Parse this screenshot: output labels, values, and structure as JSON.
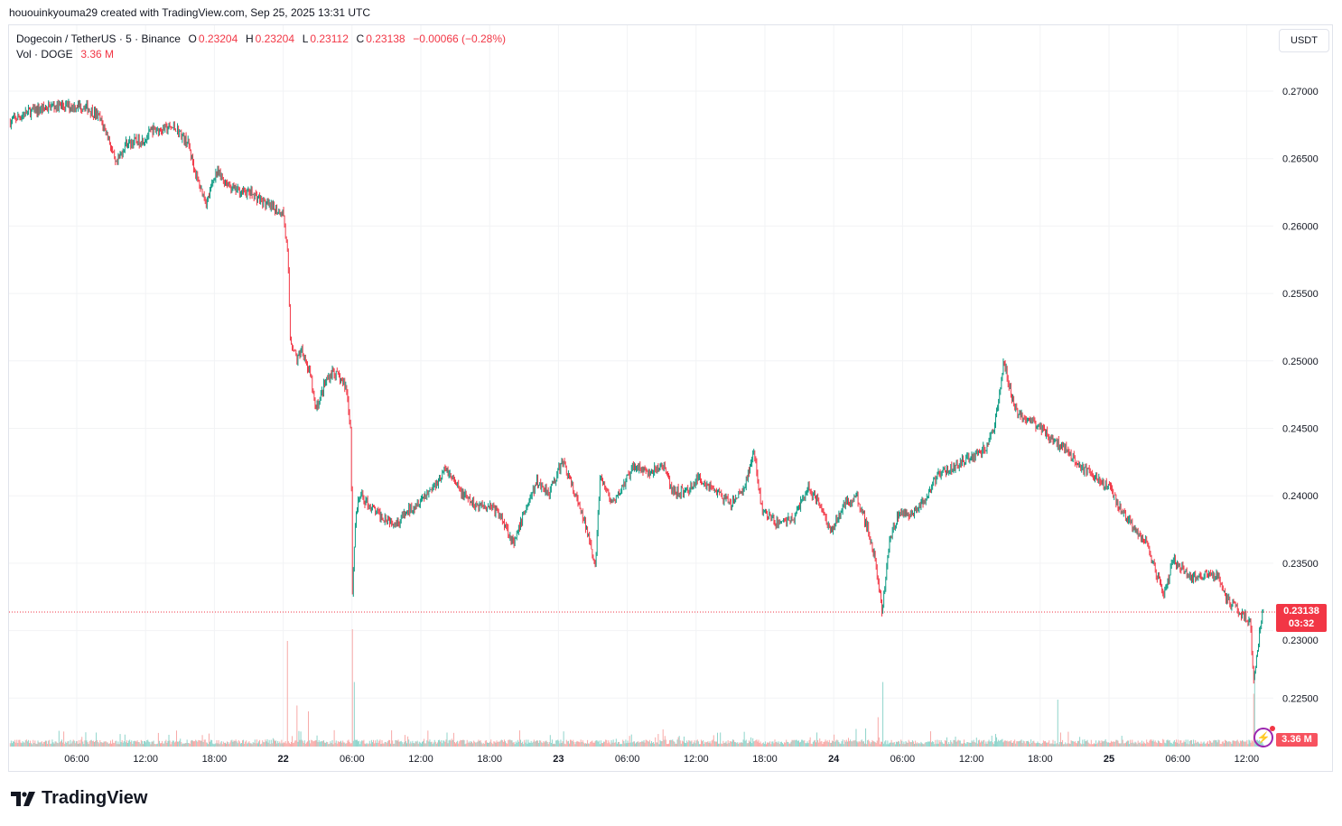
{
  "credit": "hououinkyouma29 created with TradingView.com, Sep 25, 2025 13:31 UTC",
  "legend": {
    "symbol": "Dogecoin / TetherUS · 5 · Binance",
    "o_label": "O",
    "o": "0.23204",
    "h_label": "H",
    "h": "0.23204",
    "l_label": "L",
    "l": "0.23112",
    "c_label": "C",
    "c": "0.23138",
    "change": "−0.00066 (−0.28%)",
    "vol_label": "Vol · DOGE",
    "vol": "3.36 M"
  },
  "currency_button": "USDT",
  "last_price": {
    "price": "0.23138",
    "countdown": "03:32",
    "value": 0.23138
  },
  "volume_label": "3.36 M",
  "logo": "TradingView",
  "colors": {
    "up": "#089981",
    "down": "#f23645",
    "vol_up": "#8fd4cb",
    "vol_down": "#f7a9a7",
    "grid": "#f2f3f5"
  },
  "chart_data": {
    "type": "candlestick",
    "title": "Dogecoin / TetherUS · 5 · Binance",
    "x_unit": "hours since Sep 21 00:00 UTC",
    "ylim": [
      0.2215,
      0.2723
    ],
    "xlim": [
      0,
      110.5
    ],
    "y_ticks": [
      "0.27000",
      "0.26500",
      "0.26000",
      "0.25500",
      "0.25000",
      "0.24500",
      "0.24000",
      "0.23500",
      "0.23000",
      "0.22500"
    ],
    "x_ticks": [
      {
        "h": 6,
        "label": "06:00"
      },
      {
        "h": 12,
        "label": "12:00"
      },
      {
        "h": 18,
        "label": "18:00"
      },
      {
        "h": 24,
        "label": "22"
      },
      {
        "h": 30,
        "label": "06:00"
      },
      {
        "h": 36,
        "label": "12:00"
      },
      {
        "h": 42,
        "label": "18:00"
      },
      {
        "h": 48,
        "label": "23"
      },
      {
        "h": 54,
        "label": "06:00"
      },
      {
        "h": 60,
        "label": "12:00"
      },
      {
        "h": 66,
        "label": "18:00"
      },
      {
        "h": 72,
        "label": "24"
      },
      {
        "h": 78,
        "label": "06:00"
      },
      {
        "h": 84,
        "label": "12:00"
      },
      {
        "h": 90,
        "label": "18:00"
      },
      {
        "h": 96,
        "label": "25"
      },
      {
        "h": 102,
        "label": "06:00"
      },
      {
        "h": 108,
        "label": "12:00"
      }
    ],
    "approx_price_path": [
      [
        0.2,
        0.2677
      ],
      [
        1.7,
        0.2684
      ],
      [
        4.0,
        0.2689
      ],
      [
        6.8,
        0.2689
      ],
      [
        8.0,
        0.2681
      ],
      [
        8.8,
        0.2667
      ],
      [
        9.5,
        0.2644
      ],
      [
        10.3,
        0.2661
      ],
      [
        11.9,
        0.2664
      ],
      [
        12.7,
        0.2671
      ],
      [
        14.7,
        0.2673
      ],
      [
        15.8,
        0.2661
      ],
      [
        16.6,
        0.2634
      ],
      [
        17.4,
        0.2617
      ],
      [
        18.2,
        0.264
      ],
      [
        19.8,
        0.2627
      ],
      [
        21.4,
        0.2624
      ],
      [
        22.9,
        0.2614
      ],
      [
        24.1,
        0.261
      ],
      [
        24.5,
        0.2574
      ],
      [
        24.7,
        0.2517
      ],
      [
        25.3,
        0.25
      ],
      [
        25.7,
        0.251
      ],
      [
        26.5,
        0.2487
      ],
      [
        26.9,
        0.2463
      ],
      [
        27.7,
        0.2483
      ],
      [
        28.4,
        0.2493
      ],
      [
        29.6,
        0.248
      ],
      [
        30.0,
        0.2446
      ],
      [
        30.1,
        0.2326
      ],
      [
        30.4,
        0.2386
      ],
      [
        30.8,
        0.24
      ],
      [
        32.4,
        0.2386
      ],
      [
        34.0,
        0.238
      ],
      [
        35.5,
        0.2393
      ],
      [
        37.1,
        0.2406
      ],
      [
        38.3,
        0.242
      ],
      [
        39.5,
        0.2403
      ],
      [
        40.7,
        0.2393
      ],
      [
        42.2,
        0.2393
      ],
      [
        43.4,
        0.238
      ],
      [
        44.2,
        0.2363
      ],
      [
        45.0,
        0.2386
      ],
      [
        46.2,
        0.241
      ],
      [
        47.3,
        0.2403
      ],
      [
        48.5,
        0.2426
      ],
      [
        49.3,
        0.2406
      ],
      [
        50.1,
        0.2386
      ],
      [
        50.9,
        0.2366
      ],
      [
        51.3,
        0.2346
      ],
      [
        51.7,
        0.2413
      ],
      [
        52.9,
        0.2393
      ],
      [
        53.6,
        0.2406
      ],
      [
        54.8,
        0.2423
      ],
      [
        56.0,
        0.2416
      ],
      [
        57.2,
        0.2423
      ],
      [
        58.0,
        0.2403
      ],
      [
        59.2,
        0.2403
      ],
      [
        60.3,
        0.2413
      ],
      [
        61.5,
        0.2406
      ],
      [
        63.1,
        0.2393
      ],
      [
        64.3,
        0.2406
      ],
      [
        65.1,
        0.2433
      ],
      [
        65.8,
        0.239
      ],
      [
        67.0,
        0.238
      ],
      [
        68.6,
        0.2383
      ],
      [
        69.8,
        0.2406
      ],
      [
        71.0,
        0.2393
      ],
      [
        71.8,
        0.2373
      ],
      [
        72.9,
        0.2393
      ],
      [
        74.1,
        0.24
      ],
      [
        74.9,
        0.238
      ],
      [
        75.7,
        0.2353
      ],
      [
        76.3,
        0.2313
      ],
      [
        76.9,
        0.2366
      ],
      [
        77.7,
        0.2386
      ],
      [
        78.8,
        0.2386
      ],
      [
        80.0,
        0.2396
      ],
      [
        81.2,
        0.2416
      ],
      [
        82.8,
        0.2423
      ],
      [
        84.4,
        0.243
      ],
      [
        85.5,
        0.2436
      ],
      [
        86.3,
        0.246
      ],
      [
        86.9,
        0.25
      ],
      [
        87.9,
        0.2463
      ],
      [
        89.1,
        0.2456
      ],
      [
        90.3,
        0.245
      ],
      [
        91.4,
        0.244
      ],
      [
        92.6,
        0.2433
      ],
      [
        93.8,
        0.242
      ],
      [
        95.0,
        0.2413
      ],
      [
        96.2,
        0.2406
      ],
      [
        97.3,
        0.2386
      ],
      [
        98.5,
        0.2373
      ],
      [
        99.3,
        0.2366
      ],
      [
        100.1,
        0.2346
      ],
      [
        100.9,
        0.2326
      ],
      [
        101.7,
        0.2353
      ],
      [
        103.2,
        0.2339
      ],
      [
        104.8,
        0.2343
      ],
      [
        105.6,
        0.2339
      ],
      [
        106.4,
        0.2323
      ],
      [
        107.6,
        0.2313
      ],
      [
        108.4,
        0.2306
      ],
      [
        108.7,
        0.2262
      ],
      [
        109.2,
        0.2299
      ],
      [
        109.5,
        0.2314
      ]
    ],
    "volume_spikes": [
      [
        24.4,
        0.9
      ],
      [
        25.2,
        0.35
      ],
      [
        26.2,
        0.3
      ],
      [
        30.05,
        1.0
      ],
      [
        30.2,
        0.55
      ],
      [
        76.3,
        0.55
      ],
      [
        75.9,
        0.25
      ],
      [
        91.5,
        0.4
      ],
      [
        108.7,
        0.65
      ],
      [
        108.6,
        0.45
      ]
    ]
  }
}
